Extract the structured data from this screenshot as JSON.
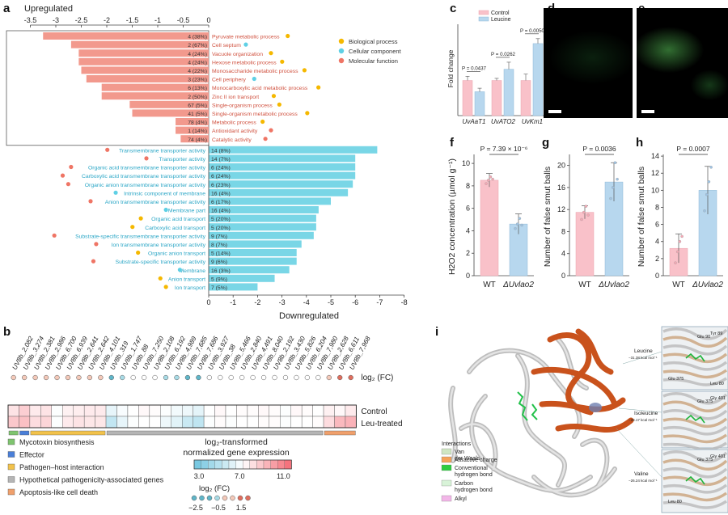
{
  "panel_labels": {
    "a": "a",
    "b": "b",
    "c": "c",
    "d": "d",
    "e": "e",
    "f": "f",
    "g": "g",
    "h": "h",
    "i": "i"
  },
  "colors": {
    "salmon": "#f2998d",
    "cyan": "#79d6e6",
    "bio_process": "#f5b800",
    "cell_component": "#5fd0e5",
    "mol_function": "#ef7565",
    "wt": "#f9c1c9",
    "mutant": "#b7d7ee"
  },
  "panel_a": {
    "top_title": "Upregulated",
    "bottom_title": "Downregulated",
    "legend": [
      {
        "label": "Biological process",
        "color": "#f5b800"
      },
      {
        "label": "Cellular component",
        "color": "#5fd0e5"
      },
      {
        "label": "Molecular function",
        "color": "#ef7565"
      }
    ]
  },
  "chart_data": [
    {
      "type": "bar",
      "panel": "a",
      "xlabel_top": "Upregulated",
      "xlabel_bottom": "Downregulated",
      "top_axis_ticks": [
        "-3.5",
        "-3",
        "-2.5",
        "-2",
        "-1.5",
        "-1",
        "-0.5",
        "0"
      ],
      "bottom_axis_ticks": [
        "0",
        "-1",
        "-2",
        "-3",
        "-4",
        "-5",
        "-6",
        "-7",
        "-8"
      ],
      "up": [
        {
          "term": "Pyruvate metabolic process",
          "count": "4 (38%)",
          "value": -3.25,
          "cat": "bio"
        },
        {
          "term": "Cell septum",
          "count": "2 (67%)",
          "value": -2.7,
          "cat": "cell"
        },
        {
          "term": "Vacuole organization",
          "count": "4 (24%)",
          "value": -2.55,
          "cat": "bio"
        },
        {
          "term": "Hexose metabolic process",
          "count": "4 (24%)",
          "value": -2.55,
          "cat": "bio"
        },
        {
          "term": "Monosaccharide metabolic process",
          "count": "4 (22%)",
          "value": -2.5,
          "cat": "bio"
        },
        {
          "term": "Cell periphery",
          "count": "3 (23%)",
          "value": -2.4,
          "cat": "cell"
        },
        {
          "term": "Monocarboxylic acid metabolic process",
          "count": "6 (13%)",
          "value": -2.1,
          "cat": "bio"
        },
        {
          "term": "Zinc II ion transport",
          "count": "2 (50%)",
          "value": -2.1,
          "cat": "bio"
        },
        {
          "term": "Single-organism process",
          "count": "67 (5%)",
          "value": -1.55,
          "cat": "bio"
        },
        {
          "term": "Single-organism metabolic process",
          "count": "41 (5%)",
          "value": -1.5,
          "cat": "bio"
        },
        {
          "term": "Metabolic process",
          "count": "78 (4%)",
          "value": -0.65,
          "cat": "bio"
        },
        {
          "term": "Antioxidant activity",
          "count": "1 (14%)",
          "value": -0.65,
          "cat": "mol"
        },
        {
          "term": "Catalytic activity",
          "count": "74 (4%)",
          "value": -0.55,
          "cat": "mol"
        }
      ],
      "down": [
        {
          "term": "Transmembrane transporter activity",
          "count": "14 (8%)",
          "value": -6.9,
          "cat": "mol"
        },
        {
          "term": "Transporter activity",
          "count": "14 (7%)",
          "value": -6.0,
          "cat": "mol"
        },
        {
          "term": "Organic acid transmembrane transporter activity",
          "count": "6 (24%)",
          "value": -6.0,
          "cat": "mol"
        },
        {
          "term": "Carboxylic acid transmembrane transporter activity",
          "count": "6 (24%)",
          "value": -6.0,
          "cat": "mol"
        },
        {
          "term": "Organic anion transmembrane transporter activity",
          "count": "6 (23%)",
          "value": -5.9,
          "cat": "mol"
        },
        {
          "term": "Intrinsic component of membrane",
          "count": "16 (4%)",
          "value": -5.7,
          "cat": "cell"
        },
        {
          "term": "Anion transmembrane transporter activity",
          "count": "6 (17%)",
          "value": -5.0,
          "cat": "mol"
        },
        {
          "term": "Membrane part",
          "count": "16 (4%)",
          "value": -4.5,
          "cat": "cell"
        },
        {
          "term": "Organic acid transport",
          "count": "5 (20%)",
          "value": -4.4,
          "cat": "bio"
        },
        {
          "term": "Carboxylic acid transport",
          "count": "5 (20%)",
          "value": -4.4,
          "cat": "bio"
        },
        {
          "term": "Substrate-specific transmembrane transporter activity",
          "count": "9 (7%)",
          "value": -4.3,
          "cat": "mol"
        },
        {
          "term": "Ion transmembrane transporter activity",
          "count": "8 (7%)",
          "value": -3.8,
          "cat": "mol"
        },
        {
          "term": "Organic anion transport",
          "count": "5 (14%)",
          "value": -3.6,
          "cat": "bio"
        },
        {
          "term": "Substrate-specific transporter activity",
          "count": "9 (6%)",
          "value": -3.6,
          "cat": "mol"
        },
        {
          "term": "Membrane",
          "count": "16 (3%)",
          "value": -3.3,
          "cat": "cell"
        },
        {
          "term": "Anion transport",
          "count": "5 (9%)",
          "value": -2.7,
          "cat": "bio"
        },
        {
          "term": "Ion transport",
          "count": "7 (5%)",
          "value": -2.0,
          "cat": "bio"
        }
      ]
    },
    {
      "type": "heatmap",
      "panel": "b",
      "genes": [
        "UV8b_2,082",
        "UV8b_3,274",
        "UV8b_2,381",
        "UV8b_2,986",
        "UV8b_6,700",
        "UV8b_6,939",
        "UV8b_2,641",
        "UV8b_2,642",
        "UV8b_4,101",
        "UV8b_319",
        "UV8b_1,747",
        "UV8b_88",
        "UV8b_7,250",
        "UV8b_2,108",
        "UV8b_6,192",
        "UV8b_4,989",
        "UV8b_7,685",
        "UV8b_7,686",
        "UV8b_3,927",
        "UV8b_38",
        "UV8b_5,466",
        "UV8b_2,840",
        "UV8b_4,491",
        "UV8b_8,040",
        "UV8b_2,192",
        "UV8b_3,430",
        "UV8b_5,826",
        "UV8b_6,204",
        "UV8b_7,980",
        "UV8b_2,628",
        "UV8b_6,611",
        "UV8b_7,968"
      ],
      "log2fc": [
        0.2,
        0.6,
        0.1,
        0.2,
        0.2,
        0.1,
        0.2,
        0.2,
        0.2,
        -1.5,
        -0.6,
        -0.3,
        -0.2,
        -0.2,
        -0.4,
        -0.6,
        -1.6,
        -1.6,
        -0.2,
        -0.2,
        -0.2,
        -0.1,
        -0.2,
        -0.1,
        -0.1,
        -0.2,
        -0.1,
        -0.2,
        -0.2,
        0.2,
        1.2,
        1.5
      ],
      "control": [
        7.8,
        8.4,
        7.6,
        7.8,
        6.9,
        7.4,
        7.5,
        7.6,
        7.6,
        6.3,
        6.8,
        7.0,
        7.2,
        7.1,
        6.9,
        6.6,
        6.5,
        6.2,
        7.0,
        7.2,
        7.0,
        7.1,
        7.1,
        7.2,
        7.1,
        6.9,
        7.2,
        7.1,
        7.0,
        7.4,
        7.2,
        7.6
      ],
      "treated": [
        8.6,
        8.8,
        8.0,
        8.2,
        6.9,
        7.6,
        7.8,
        7.7,
        7.7,
        5.2,
        6.3,
        6.9,
        7.0,
        7.0,
        6.5,
        6.1,
        5.4,
        5.1,
        6.9,
        7.1,
        6.9,
        7.0,
        7.0,
        7.1,
        7.1,
        6.9,
        7.0,
        7.0,
        7.1,
        8.0,
        9.0,
        9.2
      ],
      "rows": [
        "log₂ (FC)",
        "Control",
        "Leu-treated"
      ],
      "categories": [
        {
          "label": "Mycotoxin biosynthesis",
          "color": "#7fc46f",
          "start": 0,
          "end": 1
        },
        {
          "label": "Effector",
          "color": "#4a7fd8",
          "start": 1,
          "end": 2
        },
        {
          "label": "Pathogen–host interaction",
          "color": "#f2c24b",
          "start": 2,
          "end": 9
        },
        {
          "label": "Hypothetical pathogenicity-associated genes",
          "color": "#b5b5b5",
          "start": 9,
          "end": 29
        },
        {
          "label": "Apoptosis-like cell death",
          "color": "#f0a06c",
          "start": 29,
          "end": 32
        }
      ],
      "scale_title_1": "log₂-transformed",
      "scale_title_2": "normalized gene expression",
      "scale_ticks": [
        "3.0",
        "7.0",
        "11.0"
      ],
      "fc_title": "log₂ (FC)",
      "fc_ticks": [
        "−2.5",
        "−0.5",
        "1.5"
      ]
    },
    {
      "type": "bar",
      "panel": "c",
      "ylabel": "Fold change",
      "legend": [
        "Control",
        "Leucine"
      ],
      "categories": [
        "UvAaT1",
        "UvATO2",
        "UvKm1"
      ],
      "series": [
        {
          "name": "Control",
          "values": [
            1.0,
            1.0,
            1.0
          ],
          "errors": [
            0.12,
            0.06,
            0.18
          ]
        },
        {
          "name": "Leucine",
          "values": [
            0.68,
            1.32,
            2.05
          ],
          "errors": [
            0.1,
            0.2,
            0.14
          ]
        }
      ],
      "pvalues": [
        "P = 0.0437",
        "P = 0.0262",
        "P = 0.0050"
      ],
      "ylim": [
        0,
        2.6
      ]
    },
    {
      "type": "bar",
      "panel": "f",
      "ylabel": "H2O2 concentration (µmol g⁻¹)",
      "categories": [
        "WT",
        "ΔUvlao2"
      ],
      "values": [
        8.5,
        4.6
      ],
      "errors": [
        0.6,
        0.9
      ],
      "points": [
        [
          8.2,
          8.5,
          8.8,
          8.6
        ],
        [
          4.2,
          4.6,
          5.1,
          4.5
        ]
      ],
      "yticks": [
        "0",
        "2",
        "4",
        "6",
        "8",
        "10"
      ],
      "ylim": [
        0,
        10.8
      ],
      "p_label": "P = 7.39 × 10⁻⁶"
    },
    {
      "type": "bar",
      "panel": "g",
      "ylabel": "Number of false smut balls",
      "categories": [
        "WT",
        "ΔUvlao2"
      ],
      "values": [
        11.5,
        17.0
      ],
      "errors": [
        1.2,
        3.5
      ],
      "points": [
        [
          10.2,
          11.5,
          12.6,
          11.0
        ],
        [
          14.0,
          16.0,
          20.5,
          17.5
        ]
      ],
      "yticks": [
        "0",
        "4",
        "8",
        "12",
        "16",
        "20"
      ],
      "ylim": [
        0,
        22
      ],
      "p_label": "P = 0.0036"
    },
    {
      "type": "bar",
      "panel": "h",
      "ylabel": "Number of false smut balls",
      "categories": [
        "WT",
        "ΔUvlao2"
      ],
      "values": [
        3.2,
        10.0
      ],
      "errors": [
        1.7,
        2.8
      ],
      "points": [
        [
          1.5,
          2.8,
          4.0,
          4.6
        ],
        [
          7.6,
          9.5,
          11.0,
          12.7
        ]
      ],
      "yticks": [
        "0",
        "2",
        "4",
        "6",
        "8",
        "10",
        "12",
        "14"
      ],
      "ylim": [
        0,
        14.2
      ],
      "p_label": "P = 0.0007"
    }
  ],
  "panel_i": {
    "legend_title": "Interactions",
    "legend": [
      {
        "label": "Van der Waals",
        "color": "#cfe6c2"
      },
      {
        "label": "Attractive charge",
        "color": "#f4a259"
      },
      {
        "label": "Conventional hydrogen bond",
        "color": "#2ecc40"
      },
      {
        "label": "Carbon hydrogen bond",
        "color": "#d8f3d8"
      },
      {
        "label": "Alkyl",
        "color": "#f2b6e8"
      }
    ],
    "callouts": [
      {
        "name": "Leucine",
        "energy": "−31.38 kcal mol⁻¹"
      },
      {
        "name": "Isoleucine",
        "energy": "−28.17 kcal mol⁻¹"
      },
      {
        "name": "Valine",
        "energy": "−26.24 kcal mol⁻¹"
      }
    ],
    "residues": [
      [
        "Glu 90",
        "Tyr 89",
        "Glu 375",
        "Leu 80"
      ],
      [
        "Glu 375",
        "Gly 401"
      ],
      [
        "Glu 375",
        "Gly 401",
        "Leu 80"
      ]
    ]
  }
}
